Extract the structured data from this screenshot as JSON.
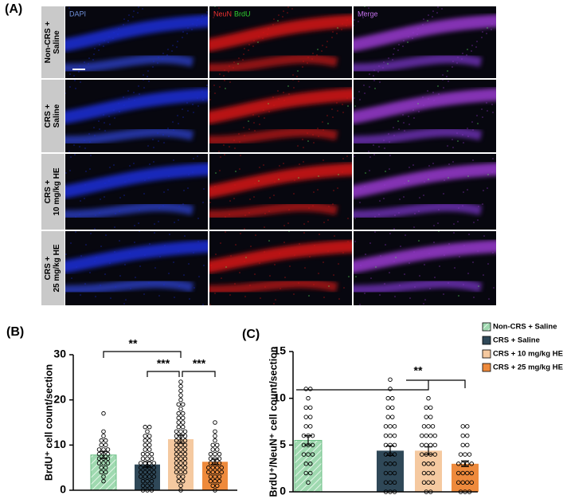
{
  "panel_a": {
    "label": "(A)",
    "headers": [
      [
        {
          "text": "DAPI",
          "color": "#6f8fd8"
        }
      ],
      [
        {
          "text": "NeuN",
          "color": "#e83030"
        },
        {
          "text": "BrdU",
          "color": "#30d030"
        }
      ],
      [
        {
          "text": "Merge",
          "color": "#c070e8"
        }
      ]
    ],
    "rows": [
      [
        "Non-CRS +",
        "Saline"
      ],
      [
        "CRS +",
        "Saline"
      ],
      [
        "CRS +",
        "10 mg/kg HE"
      ],
      [
        "CRS +",
        "25 mg/kg HE"
      ]
    ]
  },
  "chart_data": [
    {
      "type": "bar",
      "panel_label": "(B)",
      "ylabel": "BrdU⁺ cell count/section",
      "ylim": [
        0,
        30
      ],
      "yticks": [
        0,
        10,
        20,
        30
      ],
      "annotations": [
        "**",
        "***",
        "***"
      ],
      "series": [
        {
          "color": "#9fd9b0",
          "hatch": true,
          "values": [
            7.8
          ],
          "errors": [
            0.8
          ],
          "points": [
            17,
            13,
            12,
            11,
            11,
            10,
            10,
            9,
            9,
            9,
            8,
            8,
            8,
            7,
            7,
            7,
            6,
            6,
            6,
            5,
            5,
            4,
            4,
            3,
            2
          ]
        },
        {
          "color": "#2f4858",
          "values": [
            5.7
          ],
          "errors": [
            0.6
          ],
          "points": [
            14,
            14,
            13,
            12,
            12,
            11,
            11,
            10,
            10,
            9,
            9,
            8,
            8,
            8,
            7,
            7,
            7,
            6,
            6,
            6,
            6,
            5,
            5,
            5,
            5,
            4,
            4,
            4,
            4,
            3,
            3,
            3,
            3,
            2,
            2,
            2,
            1,
            1,
            1,
            0,
            0,
            0
          ]
        },
        {
          "color": "#f5c9a0",
          "values": [
            11.3
          ],
          "errors": [
            0.9
          ],
          "points": [
            24,
            23,
            22,
            21,
            20,
            19,
            19,
            18,
            17,
            17,
            16,
            16,
            15,
            15,
            14,
            14,
            13,
            13,
            13,
            12,
            12,
            12,
            11,
            11,
            11,
            10,
            10,
            10,
            9,
            9,
            9,
            8,
            8,
            8,
            7,
            7,
            7,
            6,
            6,
            6,
            5,
            5,
            5,
            4,
            4,
            4,
            3,
            3,
            2,
            2,
            1,
            0
          ]
        },
        {
          "color": "#ee8a3c",
          "values": [
            6.3
          ],
          "errors": [
            0.6
          ],
          "points": [
            15,
            13,
            12,
            11,
            10,
            10,
            9,
            9,
            8,
            8,
            8,
            7,
            7,
            7,
            6,
            6,
            6,
            5,
            5,
            5,
            5,
            4,
            4,
            4,
            4,
            3,
            3,
            3,
            2,
            2,
            2,
            1,
            1,
            0
          ]
        }
      ]
    },
    {
      "type": "bar",
      "panel_label": "(C)",
      "ylabel": "BrdU⁺/NeuN⁺ cell count/section",
      "ylim": [
        0,
        15
      ],
      "yticks": [
        0,
        5,
        10,
        15
      ],
      "annotations": [
        "**"
      ],
      "legend": "right",
      "series": [
        {
          "name": "Non-CRS + Saline",
          "color": "#9fd9b0",
          "hatch": true,
          "values": [
            5.5
          ],
          "errors": [
            0.5
          ],
          "points": [
            11,
            11,
            10,
            9,
            9,
            8,
            8,
            7,
            7,
            6,
            6,
            6,
            5,
            5,
            5,
            4,
            4,
            4,
            3,
            3,
            2,
            2,
            1
          ]
        },
        {
          "name": "CRS + Saline",
          "color": "#2f4858",
          "values": [
            4.4
          ],
          "errors": [
            0.5
          ],
          "points": [
            12,
            11,
            10,
            10,
            9,
            9,
            8,
            8,
            7,
            7,
            7,
            6,
            6,
            6,
            5,
            5,
            5,
            4,
            4,
            4,
            3,
            3,
            3,
            2,
            2,
            2,
            1,
            1,
            1,
            0,
            0,
            0
          ]
        },
        {
          "name": "CRS + 10 mg/kg HE",
          "color": "#f5c9a0",
          "values": [
            4.4
          ],
          "errors": [
            0.4
          ],
          "points": [
            10,
            9,
            9,
            8,
            8,
            7,
            7,
            7,
            6,
            6,
            6,
            6,
            5,
            5,
            5,
            5,
            4,
            4,
            4,
            4,
            3,
            3,
            3,
            2,
            2,
            2,
            1,
            1,
            1,
            0,
            0
          ]
        },
        {
          "name": "CRS + 25 mg/kg HE",
          "color": "#ee8a3c",
          "values": [
            3.0
          ],
          "errors": [
            0.3
          ],
          "points": [
            7,
            7,
            6,
            6,
            5,
            5,
            4,
            4,
            4,
            3,
            3,
            3,
            3,
            2,
            2,
            2,
            2,
            1,
            1,
            1,
            1,
            0,
            0,
            0
          ]
        }
      ]
    }
  ]
}
